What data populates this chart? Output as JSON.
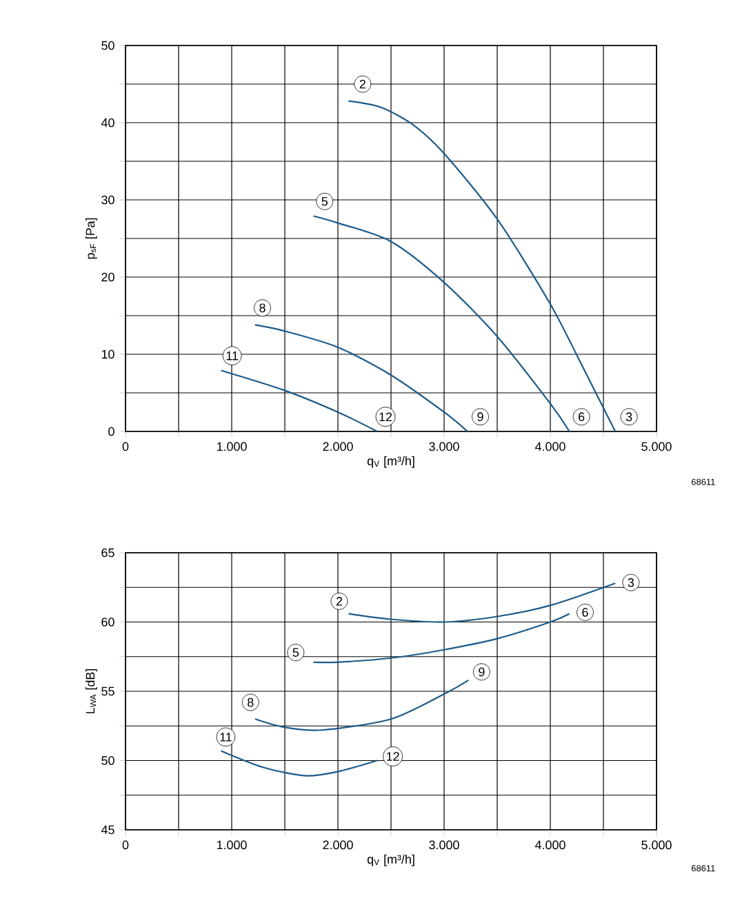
{
  "chart_data": [
    {
      "type": "line",
      "xlabel": "q$_{V}$ [m³/h]",
      "ylabel": "p$_{sF}$ [Pa]",
      "xlim": [
        0,
        5000
      ],
      "ylim": [
        0,
        50
      ],
      "xticks": [
        0,
        {
          "value": 500,
          "label": null
        },
        {
          "value": 1000,
          "label": "1.000"
        },
        {
          "value": 1500,
          "label": null
        },
        {
          "value": 2000,
          "label": "2.000"
        },
        {
          "value": 2500,
          "label": null
        },
        {
          "value": 3000,
          "label": "3.000"
        },
        {
          "value": 3500,
          "label": null
        },
        {
          "value": 4000,
          "label": "4.000"
        },
        {
          "value": 4500,
          "label": null
        },
        {
          "value": 5000,
          "label": "5.000"
        }
      ],
      "yticks": [
        0,
        {
          "value": 5,
          "label": null
        },
        10,
        {
          "value": 15,
          "label": null
        },
        20,
        {
          "value": 25,
          "label": null
        },
        30,
        {
          "value": 35,
          "label": null
        },
        40,
        {
          "value": 45,
          "label": null
        },
        50
      ],
      "grid": true,
      "series": [
        {
          "color": "#1b5a8a",
          "x": [
            2100,
            2400,
            2700,
            3000,
            3500,
            4000,
            4300,
            4612
          ],
          "values": [
            42.8,
            42,
            39.8,
            36,
            27.5,
            16.5,
            8.5,
            0
          ]
        },
        {
          "color": "#1b5a8a",
          "x": [
            1770,
            2000,
            2500,
            3000,
            3500,
            4000,
            4180
          ],
          "values": [
            27.9,
            27,
            24.6,
            19.3,
            12.3,
            3.6,
            0
          ]
        },
        {
          "color": "#1b5a8a",
          "x": [
            1220,
            1500,
            2000,
            2500,
            3000,
            3220
          ],
          "values": [
            13.8,
            13,
            10.9,
            7.3,
            2.5,
            0
          ]
        },
        {
          "color": "#1b5a8a",
          "x": [
            900,
            1500,
            2000,
            2370
          ],
          "values": [
            7.9,
            5.3,
            2.5,
            0
          ]
        }
      ],
      "annotations": [
        {
          "text": "2",
          "x": 2233,
          "y": 45
        },
        {
          "text": "5",
          "x": 1875,
          "y": 29.8
        },
        {
          "text": "8",
          "x": 1289,
          "y": 16
        },
        {
          "text": "11",
          "x": 1004,
          "y": 9.8
        },
        {
          "text": "12",
          "x": 2448,
          "y": 1.9
        },
        {
          "text": "9",
          "x": 3341,
          "y": 1.9
        },
        {
          "text": "6",
          "x": 4293,
          "y": 1.9
        },
        {
          "text": "3",
          "x": 4741,
          "y": 1.9
        },
        "68611"
      ]
    },
    {
      "type": "line",
      "xlabel": "q$_{V}$ [m³/h]",
      "ylabel": "L$_{WA}$ [dB]",
      "xlim": [
        0,
        5000
      ],
      "ylim": [
        45,
        65
      ],
      "xticks": [
        0,
        {
          "value": 500,
          "label": null
        },
        {
          "value": 1000,
          "label": "1.000"
        },
        {
          "value": 1500,
          "label": null
        },
        {
          "value": 2000,
          "label": "2.000"
        },
        {
          "value": 2500,
          "label": null
        },
        {
          "value": 3000,
          "label": "3.000"
        },
        {
          "value": 3500,
          "label": null
        },
        {
          "value": 4000,
          "label": "4.000"
        },
        {
          "value": 4500,
          "label": null
        },
        {
          "value": 5000,
          "label": "5.000"
        }
      ],
      "yticks": [
        45,
        {
          "value": 47.5,
          "label": null
        },
        50,
        {
          "value": 52.5,
          "label": null
        },
        55,
        {
          "value": 57.5,
          "label": null
        },
        60,
        {
          "value": 62.5,
          "label": null
        },
        65
      ],
      "grid": true,
      "series": [
        {
          "color": "#1b5a8a",
          "x": [
            2100,
            2500,
            3000,
            3500,
            4000,
            4612
          ],
          "values": [
            60.6,
            60.2,
            60,
            60.4,
            61.2,
            62.8
          ]
        },
        {
          "color": "#1b5a8a",
          "x": [
            1770,
            2000,
            2500,
            3000,
            3500,
            4000,
            4180
          ],
          "values": [
            57.1,
            57.1,
            57.4,
            58,
            58.8,
            60,
            60.6
          ]
        },
        {
          "color": "#1b5a8a",
          "x": [
            1220,
            1500,
            1850,
            2500,
            3000,
            3230
          ],
          "values": [
            53,
            52.4,
            52.2,
            53,
            54.8,
            55.8
          ]
        },
        {
          "color": "#1b5a8a",
          "x": [
            900,
            1300,
            1700,
            2000,
            2370
          ],
          "values": [
            50.7,
            49.5,
            48.9,
            49.2,
            50
          ]
        }
      ],
      "annotations": [
        {
          "text": "2",
          "x": 2013,
          "y": 61.5
        },
        {
          "text": "3",
          "x": 4759,
          "y": 62.85
        },
        {
          "text": "5",
          "x": 1603,
          "y": 57.8
        },
        {
          "text": "6",
          "x": 4328,
          "y": 60.7
        },
        {
          "text": "8",
          "x": 1177,
          "y": 54.2
        },
        {
          "text": "9",
          "x": 3353,
          "y": 56.4
        },
        {
          "text": "11",
          "x": 944,
          "y": 51.7
        },
        {
          "text": "12",
          "x": 2517,
          "y": 50.3
        },
        "68611"
      ]
    }
  ]
}
